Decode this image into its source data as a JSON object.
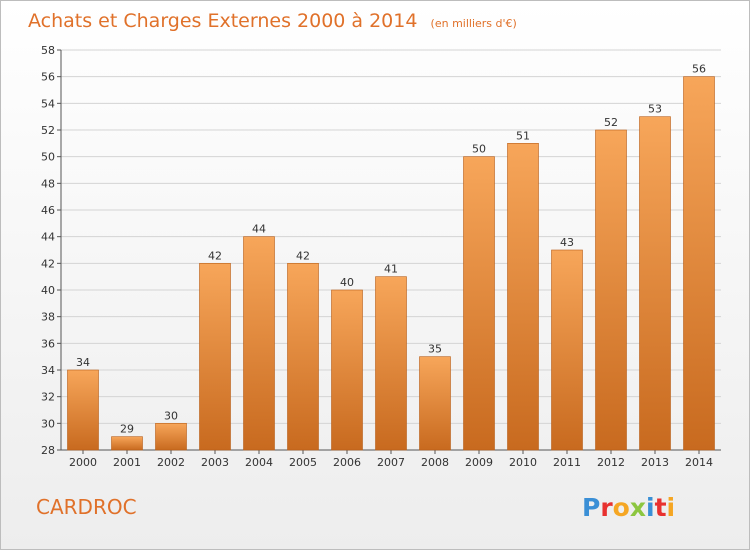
{
  "title": "Achats et Charges Externes 2000 à 2014",
  "unit": "(en milliers d'€)",
  "commune": "CARDROC",
  "logo": "Proxiti",
  "colors": {
    "title": "#e0712a",
    "bar_light": "#f7a65a",
    "bar_dark": "#c86a1f",
    "grid": "#d4d4d4",
    "logo_letters": [
      "#3a8fd6",
      "#e8312f",
      "#f5a623",
      "#8cc63f",
      "#3a8fd6",
      "#e8312f",
      "#f5a623"
    ]
  },
  "chart_data": {
    "type": "bar",
    "title": "Achats et Charges Externes 2000 à 2014",
    "subtitle": "(en milliers d'€)",
    "xlabel": "",
    "ylabel": "",
    "categories": [
      "2000",
      "2001",
      "2002",
      "2003",
      "2004",
      "2005",
      "2006",
      "2007",
      "2008",
      "2009",
      "2010",
      "2011",
      "2012",
      "2013",
      "2014"
    ],
    "values": [
      34,
      29,
      30,
      42,
      44,
      42,
      40,
      41,
      35,
      50,
      51,
      43,
      52,
      53,
      56
    ],
    "ylim": [
      28,
      58
    ],
    "yticks": [
      28,
      30,
      32,
      34,
      36,
      38,
      40,
      42,
      44,
      46,
      48,
      50,
      52,
      54,
      56,
      58
    ],
    "grid": true,
    "legend": "none"
  }
}
